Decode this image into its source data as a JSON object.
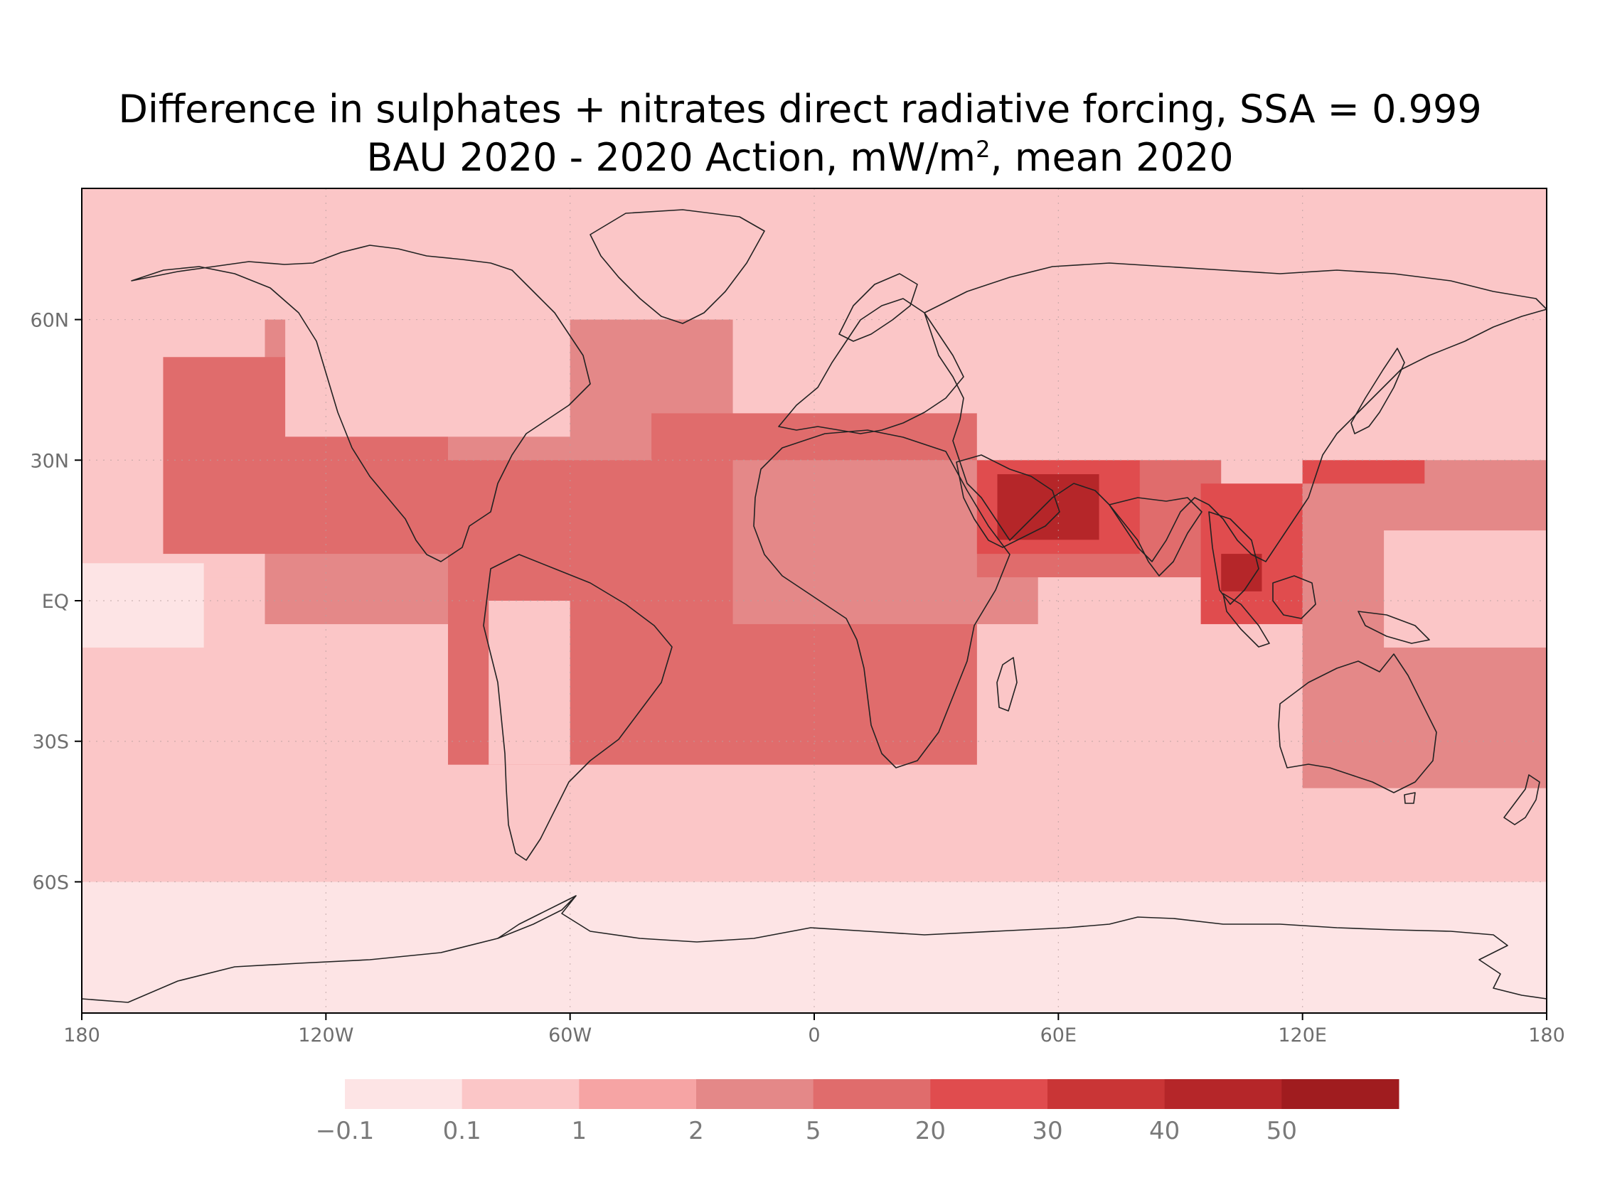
{
  "title": {
    "line1": "Difference in sulphates + nitrates direct radiative forcing, SSA = 0.999",
    "line2_prefix": "BAU 2020 - 2020 Action, mW/m",
    "line2_sup": "2",
    "line2_suffix": ", mean 2020"
  },
  "axes": {
    "x_ticks": [
      {
        "value": -180,
        "label": "180"
      },
      {
        "value": -120,
        "label": "120W"
      },
      {
        "value": -60,
        "label": "60W"
      },
      {
        "value": 0,
        "label": "0"
      },
      {
        "value": 60,
        "label": "60E"
      },
      {
        "value": 120,
        "label": "120E"
      },
      {
        "value": 180,
        "label": "180"
      }
    ],
    "y_ticks": [
      {
        "value": 60,
        "label": "60N"
      },
      {
        "value": 30,
        "label": "30N"
      },
      {
        "value": 0,
        "label": "EQ"
      },
      {
        "value": -30,
        "label": "30S"
      },
      {
        "value": -60,
        "label": "60S"
      }
    ],
    "xlim": [
      -180,
      180
    ],
    "ylim": [
      -88,
      88
    ],
    "grid": "dotted"
  },
  "colorbar": {
    "levels": [
      "-0.1",
      "0.1",
      "1",
      "2",
      "5",
      "20",
      "30",
      "40",
      "50"
    ],
    "colors": [
      "#fde4e5",
      "#fbc6c7",
      "#f6a4a4",
      "#e48888",
      "#e06c6c",
      "#e04c4e",
      "#c93536",
      "#b52629",
      "#a01c1f"
    ]
  },
  "chart_data": {
    "type": "heatmap",
    "title": "Difference in sulphates + nitrates direct radiative forcing, SSA = 0.999 / BAU 2020 - 2020 Action, mW/m2, mean 2020",
    "xlim": [
      -180,
      180
    ],
    "ylim": [
      -88,
      88
    ],
    "unit": "mW/m2",
    "regions": [
      {
        "lon": [
          -180,
          180
        ],
        "lat": [
          -88,
          -60
        ],
        "level": 0
      },
      {
        "lon": [
          -180,
          180
        ],
        "lat": [
          -60,
          -35
        ],
        "level": 1
      },
      {
        "lon": [
          -180,
          -85
        ],
        "lat": [
          -35,
          5
        ],
        "level": 1
      },
      {
        "lon": [
          -180,
          -150
        ],
        "lat": [
          -10,
          8
        ],
        "level": 0
      },
      {
        "lon": [
          -180,
          180
        ],
        "lat": [
          60,
          88
        ],
        "level": 1
      },
      {
        "lon": [
          -135,
          -20
        ],
        "lat": [
          -5,
          60
        ],
        "level": 3
      },
      {
        "lon": [
          -160,
          -90
        ],
        "lat": [
          10,
          52
        ],
        "level": 4
      },
      {
        "lon": [
          -90,
          40
        ],
        "lat": [
          -35,
          30
        ],
        "level": 4
      },
      {
        "lon": [
          -40,
          40
        ],
        "lat": [
          10,
          40
        ],
        "level": 4
      },
      {
        "lon": [
          -20,
          55
        ],
        "lat": [
          -5,
          30
        ],
        "level": 3
      },
      {
        "lon": [
          40,
          100
        ],
        "lat": [
          5,
          35
        ],
        "level": 4
      },
      {
        "lon": [
          40,
          80
        ],
        "lat": [
          10,
          30
        ],
        "level": 5
      },
      {
        "lon": [
          45,
          70
        ],
        "lat": [
          13,
          27
        ],
        "level": 7
      },
      {
        "lon": [
          95,
          125
        ],
        "lat": [
          -5,
          25
        ],
        "level": 5
      },
      {
        "lon": [
          100,
          110
        ],
        "lat": [
          2,
          10
        ],
        "level": 7
      },
      {
        "lon": [
          120,
          180
        ],
        "lat": [
          -40,
          55
        ],
        "level": 3
      },
      {
        "lon": [
          120,
          150
        ],
        "lat": [
          25,
          40
        ],
        "level": 5
      },
      {
        "lon": [
          -130,
          -60
        ],
        "lat": [
          35,
          60
        ],
        "level": 1
      },
      {
        "lon": [
          -80,
          -60
        ],
        "lat": [
          -35,
          0
        ],
        "level": 1
      },
      {
        "lon": [
          40,
          180
        ],
        "lat": [
          30,
          88
        ],
        "level": 1
      },
      {
        "lon": [
          140,
          180
        ],
        "lat": [
          -10,
          15
        ],
        "level": 1
      }
    ]
  }
}
